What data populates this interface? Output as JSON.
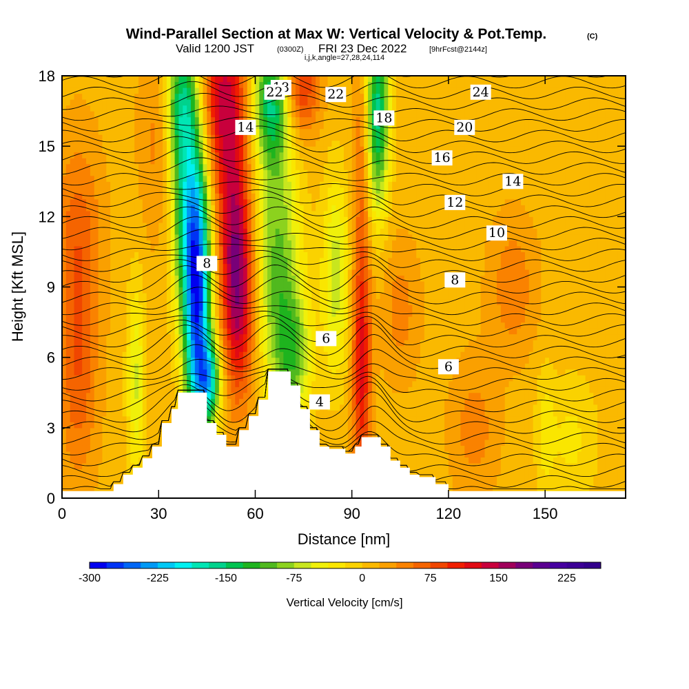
{
  "chart_data": {
    "type": "heatmap",
    "title": {
      "main": "Wind-Parallel Section at Max W: Vertical Velocity & Pot.Temp.",
      "copyright": "(C)",
      "valid_prefix": "Valid 1200 JST",
      "valid_utc": "(0300Z)",
      "valid_date": "FRI 23 Dec 2022",
      "forecast": "[9hrFcst@2144z]",
      "indices": "i,j,k,angle=27,28,24,114"
    },
    "xlabel": "Distance [nm]",
    "ylabel": "Height [Kft MSL]",
    "xlim": [
      0,
      175
    ],
    "ylim": [
      0,
      18
    ],
    "x_ticks": [
      0,
      30,
      60,
      90,
      120,
      150
    ],
    "y_ticks": [
      0,
      3,
      6,
      9,
      12,
      15,
      18
    ],
    "colorbar": {
      "title": "Vertical Velocity [cm/s]",
      "ticks": [
        "-300",
        "-225",
        "-150",
        "-75",
        "0",
        "75",
        "150",
        "225"
      ],
      "range": [
        -300,
        262.5
      ],
      "step": 18.75,
      "colors": [
        "#0000f0",
        "#0033f5",
        "#0066f5",
        "#0099f5",
        "#00c8f5",
        "#00f0f0",
        "#00e6b4",
        "#00d28c",
        "#00c350",
        "#1eb41e",
        "#50b91e",
        "#8cd21e",
        "#c8e61e",
        "#f0f00a",
        "#fae600",
        "#fad200",
        "#fab900",
        "#faa000",
        "#fa8200",
        "#f56400",
        "#f04600",
        "#f01e00",
        "#e10a14",
        "#c8003c",
        "#a0005a",
        "#780078",
        "#5a0090",
        "#4600a0",
        "#3c0096",
        "#32008c"
      ]
    },
    "velocity_features": [
      {
        "x": 42,
        "y": 8.5,
        "w": -280,
        "sx": 3.0,
        "sy": 4.5
      },
      {
        "x": 38,
        "y": 12.5,
        "w": -120,
        "sx": 3.2,
        "sy": 3.2
      },
      {
        "x": 37,
        "y": 17.0,
        "w": -130,
        "sx": 3.5,
        "sy": 2.0
      },
      {
        "x": 46,
        "y": 5.0,
        "w": -150,
        "sx": 2.5,
        "sy": 1.2
      },
      {
        "x": 67,
        "y": 10.0,
        "w": -110,
        "sx": 5.0,
        "sy": 4.0
      },
      {
        "x": 65,
        "y": 17.0,
        "w": -150,
        "sx": 4.0,
        "sy": 2.0
      },
      {
        "x": 72,
        "y": 6.0,
        "w": -90,
        "sx": 4.0,
        "sy": 2.0
      },
      {
        "x": 85,
        "y": 9.5,
        "w": -80,
        "sx": 3.0,
        "sy": 3.0
      },
      {
        "x": 98,
        "y": 16.5,
        "w": -170,
        "sx": 2.5,
        "sy": 3.0
      },
      {
        "x": 23,
        "y": 5.0,
        "w": -70,
        "sx": 2.0,
        "sy": 3.0
      },
      {
        "x": 55,
        "y": 8.5,
        "w": 130,
        "sx": 3.5,
        "sy": 3.0
      },
      {
        "x": 53,
        "y": 12.0,
        "w": 80,
        "sx": 3.5,
        "sy": 3.0
      },
      {
        "x": 50,
        "y": 17.0,
        "w": 120,
        "sx": 5.0,
        "sy": 2.5
      },
      {
        "x": 74,
        "y": 17.5,
        "w": 90,
        "sx": 4.0,
        "sy": 1.5
      },
      {
        "x": 93,
        "y": 6.0,
        "w": 110,
        "sx": 2.0,
        "sy": 4.0
      },
      {
        "x": 93,
        "y": 15.0,
        "w": 40,
        "sx": 2.0,
        "sy": 3.0
      },
      {
        "x": 5,
        "y": 11.0,
        "w": 55,
        "sx": 5.0,
        "sy": 3.0
      },
      {
        "x": 5,
        "y": 5.0,
        "w": 55,
        "sx": 4.0,
        "sy": 3.0
      },
      {
        "x": 30,
        "y": 15.5,
        "w": 35,
        "sx": 4.0,
        "sy": 3.0
      },
      {
        "x": 105,
        "y": 8.0,
        "w": 35,
        "sx": 4.0,
        "sy": 2.0
      },
      {
        "x": 140,
        "y": 9.0,
        "w": 40,
        "sx": 5.0,
        "sy": 2.0
      },
      {
        "x": 128,
        "y": 3.0,
        "w": 35,
        "sx": 5.0,
        "sy": 2.0
      },
      {
        "x": 158,
        "y": 2.5,
        "w": -35,
        "sx": 6.0,
        "sy": 2.0
      },
      {
        "x": 150,
        "y": 3.0,
        "w": -30,
        "sx": 2.0,
        "sy": 2.0
      }
    ],
    "terrain_profile": [
      [
        0,
        0.3
      ],
      [
        16,
        0.3
      ],
      [
        16,
        0.6
      ],
      [
        19,
        0.6
      ],
      [
        19,
        1.0
      ],
      [
        22,
        1.0
      ],
      [
        22,
        1.3
      ],
      [
        25,
        1.3
      ],
      [
        25,
        1.7
      ],
      [
        28,
        1.7
      ],
      [
        28,
        2.2
      ],
      [
        31,
        2.2
      ],
      [
        31,
        3.2
      ],
      [
        34,
        3.2
      ],
      [
        34,
        3.8
      ],
      [
        36,
        3.8
      ],
      [
        36,
        4.5
      ],
      [
        45,
        4.5
      ],
      [
        45,
        3.2
      ],
      [
        48,
        3.2
      ],
      [
        48,
        2.7
      ],
      [
        51,
        2.7
      ],
      [
        51,
        2.2
      ],
      [
        55,
        2.2
      ],
      [
        55,
        2.9
      ],
      [
        58,
        2.9
      ],
      [
        58,
        3.5
      ],
      [
        61,
        3.5
      ],
      [
        61,
        4.2
      ],
      [
        64,
        4.2
      ],
      [
        64,
        5.4
      ],
      [
        71,
        5.4
      ],
      [
        71,
        4.8
      ],
      [
        74,
        4.8
      ],
      [
        74,
        3.8
      ],
      [
        77,
        3.8
      ],
      [
        77,
        2.9
      ],
      [
        80,
        2.9
      ],
      [
        80,
        2.2
      ],
      [
        83,
        2.2
      ],
      [
        83,
        2.1
      ],
      [
        88,
        2.1
      ],
      [
        88,
        1.9
      ],
      [
        91,
        1.9
      ],
      [
        91,
        2.2
      ],
      [
        93,
        2.2
      ],
      [
        93,
        2.6
      ],
      [
        99,
        2.6
      ],
      [
        99,
        2.2
      ],
      [
        102,
        2.2
      ],
      [
        102,
        1.6
      ],
      [
        105,
        1.6
      ],
      [
        105,
        1.3
      ],
      [
        108,
        1.3
      ],
      [
        108,
        1.0
      ],
      [
        111,
        1.0
      ],
      [
        111,
        0.9
      ],
      [
        116,
        0.9
      ],
      [
        116,
        0.6
      ],
      [
        120,
        0.6
      ],
      [
        120,
        0.3
      ],
      [
        175,
        0.3
      ]
    ],
    "contour_label_values": [
      "4",
      "6",
      "8",
      "10",
      "12",
      "14",
      "16",
      "18",
      "20",
      "22",
      "24"
    ]
  }
}
